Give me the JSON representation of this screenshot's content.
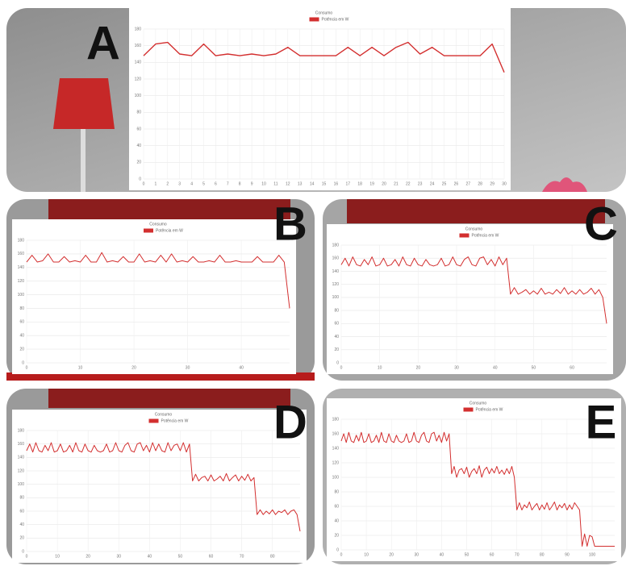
{
  "chart_data": [
    {
      "type": "line",
      "label": "A",
      "title": "Consumo",
      "ylim": [
        0,
        180
      ],
      "yticks": [
        0,
        20,
        40,
        60,
        80,
        100,
        120,
        140,
        160,
        180
      ],
      "grid": true,
      "categories": [
        "0",
        "1",
        "2",
        "3",
        "4",
        "5",
        "6",
        "7",
        "8",
        "9",
        "10",
        "11",
        "12",
        "13",
        "14",
        "15",
        "16",
        "17",
        "18",
        "19",
        "20",
        "21",
        "22",
        "23",
        "24",
        "25",
        "26",
        "27",
        "28",
        "29",
        "30"
      ],
      "series": [
        {
          "name": "Potência em W",
          "color": "#d32f2f",
          "values": [
            148,
            162,
            164,
            150,
            148,
            162,
            148,
            150,
            148,
            150,
            148,
            150,
            158,
            148,
            148,
            148,
            148,
            158,
            148,
            158,
            148,
            158,
            164,
            150,
            158,
            148,
            148,
            148,
            148,
            162,
            128
          ]
        }
      ]
    },
    {
      "type": "line",
      "label": "B",
      "title": "Consumo",
      "ylim": [
        0,
        180
      ],
      "yticks": [
        0,
        20,
        40,
        60,
        80,
        100,
        120,
        140,
        160,
        180
      ],
      "grid": true,
      "xlim": [
        0,
        49
      ],
      "xticks": [
        0,
        10,
        20,
        30,
        40
      ],
      "series": [
        {
          "name": "Potência em W",
          "color": "#d32f2f",
          "values": [
            148,
            158,
            148,
            150,
            160,
            148,
            148,
            156,
            148,
            150,
            148,
            158,
            148,
            148,
            162,
            148,
            150,
            148,
            156,
            148,
            148,
            160,
            148,
            150,
            148,
            158,
            148,
            160,
            148,
            150,
            148,
            156,
            148,
            148,
            150,
            148,
            158,
            148,
            148,
            150,
            148,
            148,
            148,
            156,
            148,
            148,
            148,
            158,
            148,
            80
          ]
        }
      ]
    },
    {
      "type": "line",
      "label": "C",
      "title": "Consumo",
      "ylim": [
        0,
        180
      ],
      "yticks": [
        0,
        20,
        40,
        60,
        80,
        100,
        120,
        140,
        160,
        180
      ],
      "grid": true,
      "xlim": [
        0,
        69
      ],
      "xticks": [
        0,
        10,
        20,
        30,
        40,
        50,
        60
      ],
      "series": [
        {
          "name": "Potência em W",
          "color": "#d32f2f",
          "values": [
            150,
            160,
            148,
            162,
            150,
            148,
            158,
            150,
            162,
            148,
            150,
            160,
            148,
            150,
            158,
            148,
            162,
            150,
            148,
            160,
            150,
            148,
            158,
            150,
            148,
            150,
            160,
            148,
            150,
            162,
            150,
            148,
            158,
            162,
            150,
            148,
            160,
            162,
            150,
            158,
            148,
            162,
            150,
            160,
            105,
            115,
            105,
            108,
            112,
            105,
            110,
            105,
            114,
            105,
            108,
            105,
            112,
            106,
            115,
            105,
            110,
            105,
            112,
            105,
            108,
            114,
            105,
            112,
            100,
            60
          ]
        }
      ]
    },
    {
      "type": "line",
      "label": "D",
      "title": "Consumo",
      "ylim": [
        0,
        180
      ],
      "yticks": [
        0,
        20,
        40,
        60,
        80,
        100,
        120,
        140,
        160,
        180
      ],
      "grid": true,
      "xlim": [
        0,
        89
      ],
      "xticks": [
        0,
        10,
        20,
        30,
        40,
        50,
        60,
        70,
        80
      ],
      "series": [
        {
          "name": "Potência em W",
          "color": "#d32f2f",
          "values": [
            150,
            160,
            148,
            162,
            150,
            148,
            158,
            150,
            162,
            148,
            150,
            160,
            148,
            150,
            158,
            148,
            162,
            150,
            148,
            160,
            150,
            148,
            158,
            150,
            148,
            150,
            160,
            148,
            150,
            162,
            150,
            148,
            158,
            162,
            150,
            148,
            160,
            162,
            150,
            158,
            148,
            162,
            150,
            160,
            150,
            148,
            162,
            150,
            158,
            160,
            150,
            162,
            148,
            160,
            105,
            115,
            105,
            110,
            112,
            105,
            114,
            105,
            108,
            112,
            105,
            116,
            105,
            110,
            114,
            105,
            112,
            106,
            115,
            105,
            110,
            55,
            62,
            55,
            60,
            56,
            62,
            55,
            60,
            58,
            62,
            55,
            60,
            62,
            55,
            30
          ]
        }
      ]
    },
    {
      "type": "line",
      "label": "E",
      "title": "Consumo",
      "ylim": [
        0,
        180
      ],
      "yticks": [
        0,
        20,
        40,
        60,
        80,
        100,
        120,
        140,
        160,
        180
      ],
      "grid": true,
      "xlim": [
        0,
        109
      ],
      "xticks": [
        0,
        10,
        20,
        30,
        40,
        50,
        60,
        70,
        80,
        90,
        100
      ],
      "series": [
        {
          "name": "Potência em W",
          "color": "#d32f2f",
          "values": [
            150,
            160,
            148,
            162,
            150,
            148,
            158,
            150,
            162,
            148,
            150,
            160,
            148,
            150,
            158,
            148,
            162,
            150,
            148,
            160,
            150,
            148,
            158,
            150,
            148,
            150,
            160,
            148,
            150,
            162,
            150,
            148,
            158,
            162,
            150,
            148,
            160,
            162,
            150,
            158,
            148,
            162,
            150,
            160,
            105,
            115,
            100,
            110,
            112,
            105,
            114,
            100,
            108,
            112,
            105,
            116,
            100,
            110,
            114,
            105,
            112,
            106,
            115,
            105,
            110,
            104,
            112,
            105,
            115,
            100,
            55,
            65,
            55,
            62,
            58,
            66,
            55,
            60,
            64,
            55,
            62,
            56,
            65,
            55,
            60,
            66,
            55,
            62,
            58,
            64,
            55,
            62,
            56,
            65,
            60,
            55,
            5,
            22,
            5,
            20,
            18,
            5,
            5,
            5,
            5,
            5,
            5,
            5,
            5,
            5
          ]
        }
      ]
    }
  ]
}
